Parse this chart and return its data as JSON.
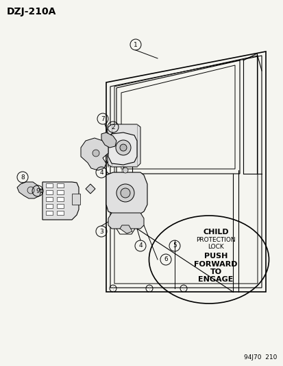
{
  "title": "DZJ-210A",
  "footer": "94J70  210",
  "bg_color": "#f5f5f0",
  "label_color": "#000000",
  "line_color": "#000000",
  "child_lock_lines": [
    "CHILD",
    "PROTECTION",
    "LOCK",
    "PUSH",
    "FORWARD",
    "TO",
    "ENGAGE"
  ],
  "child_lock_bold": [
    true,
    false,
    false,
    true,
    true,
    true,
    true
  ]
}
